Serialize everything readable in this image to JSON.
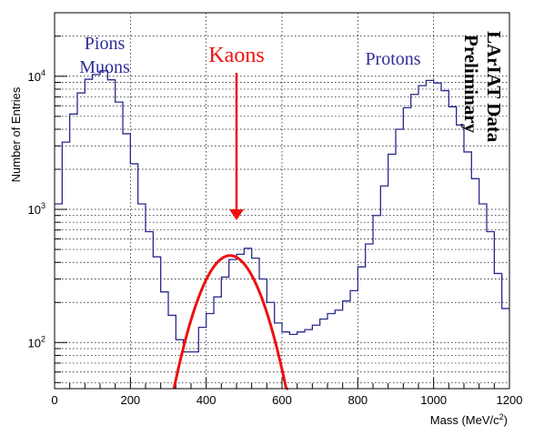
{
  "chart_data": {
    "type": "histogram",
    "xlabel": "Mass (MeV/c²)",
    "ylabel": "Number of Entries",
    "xlim": [
      0,
      1200
    ],
    "ylim": [
      45,
      30000
    ],
    "yscale": "log",
    "grid": true,
    "x_ticks": [
      0,
      200,
      400,
      600,
      800,
      1000,
      1200
    ],
    "y_ticks": [
      {
        "value": 100,
        "base": "10",
        "exp": "2"
      },
      {
        "value": 1000,
        "base": "10",
        "exp": "3"
      },
      {
        "value": 10000,
        "base": "10",
        "exp": "4"
      }
    ],
    "histogram": {
      "bin_width": 20,
      "bin_start": 0,
      "color": "#2a2a8c",
      "counts": [
        1100,
        3200,
        5200,
        7500,
        9500,
        10300,
        11000,
        9400,
        6400,
        3700,
        2200,
        1100,
        680,
        440,
        240,
        160,
        105,
        85,
        85,
        130,
        165,
        220,
        310,
        420,
        460,
        510,
        430,
        300,
        200,
        140,
        120,
        115,
        120,
        125,
        135,
        150,
        165,
        175,
        205,
        245,
        370,
        550,
        900,
        1500,
        2600,
        4000,
        5800,
        7300,
        8500,
        9300,
        8900,
        7800,
        5900,
        4300,
        2700,
        1700,
        1100,
        680,
        330,
        180
      ]
    },
    "fit": {
      "shape": "gaussian",
      "color": "#ee1111",
      "mean": 463,
      "sigma": 69,
      "amplitude": 450,
      "x_range": [
        310,
        620
      ]
    },
    "annotations": {
      "pions": "Pions",
      "muons": "Muons",
      "kaons": "Kaons",
      "protons": "Protons",
      "watermark_line1": "LArIAT Data",
      "watermark_line2": "Preliminary"
    }
  }
}
